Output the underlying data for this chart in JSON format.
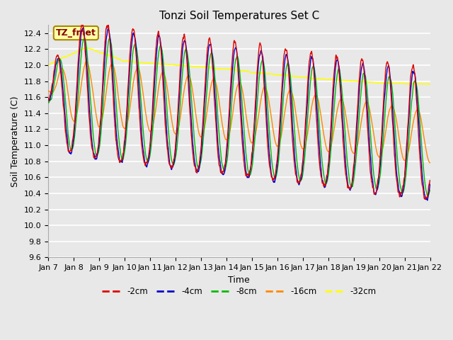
{
  "title": "Tonzi Soil Temperatures Set C",
  "xlabel": "Time",
  "ylabel": "Soil Temperature (C)",
  "ylim": [
    9.6,
    12.5
  ],
  "bg_color": "#e0e0e0",
  "plot_bg_color": "#e8e8e8",
  "grid_color": "white",
  "annotation_text": "TZ_fmet",
  "annotation_bg": "#ffffaa",
  "annotation_border": "#aa8800",
  "annotation_text_color": "#880000",
  "tick_labels": [
    "Jan 7",
    "Jan 8",
    "Jan 9",
    "Jan 10",
    "Jan 11",
    "Jan 12",
    "Jan 13",
    "Jan 14",
    "Jan 15",
    "Jan 16",
    "Jan 17",
    "Jan 18",
    "Jan 19",
    "Jan 20",
    "Jan 21",
    "Jan 22"
  ],
  "legend_labels": [
    "-2cm",
    "-4cm",
    "-8cm",
    "-16cm",
    "-32cm"
  ],
  "line_colors": [
    "#dd0000",
    "#0000cc",
    "#00bb00",
    "#ff8800",
    "#ffff00"
  ],
  "line_widths": [
    1.0,
    1.0,
    1.0,
    1.0,
    1.2
  ],
  "yticks": [
    9.6,
    9.8,
    10.0,
    10.2,
    10.4,
    10.6,
    10.8,
    11.0,
    11.2,
    11.4,
    11.6,
    11.8,
    12.0,
    12.2,
    12.4
  ]
}
